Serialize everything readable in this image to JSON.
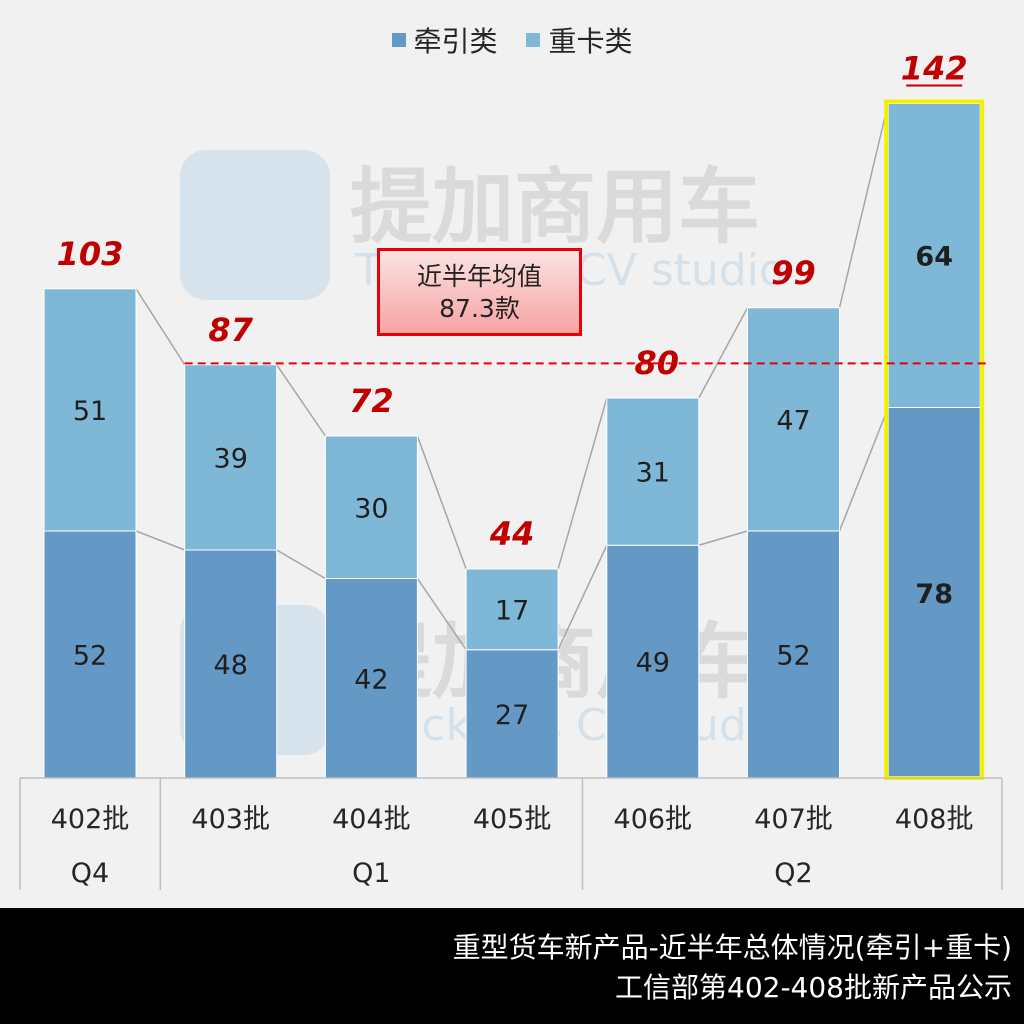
{
  "chart_data": {
    "type": "bar",
    "stacked": true,
    "categories": [
      "402批",
      "403批",
      "404批",
      "405批",
      "406批",
      "407批",
      "408批"
    ],
    "quarter_groups": [
      {
        "label": "Q4",
        "categories": [
          "402批"
        ]
      },
      {
        "label": "Q1",
        "categories": [
          "403批",
          "404批",
          "405批"
        ]
      },
      {
        "label": "Q2",
        "categories": [
          "406批",
          "407批",
          "408批"
        ]
      }
    ],
    "series": [
      {
        "name": "牵引类",
        "values": [
          52,
          48,
          42,
          27,
          49,
          52,
          78
        ],
        "color": "#6399c4"
      },
      {
        "name": "重卡类",
        "values": [
          51,
          39,
          30,
          17,
          31,
          47,
          64
        ],
        "color": "#7fb8d6"
      }
    ],
    "totals": [
      103,
      87,
      72,
      44,
      80,
      99,
      142
    ],
    "average": {
      "value": 87.3,
      "line1": "近半年均值",
      "line2": "87.3款",
      "color": "#e8000b"
    },
    "highlight_category": "408批",
    "highlight_color": "#f2f200",
    "total_label_color": "#c00000",
    "ylim": [
      0,
      145
    ],
    "legend_position": "top-center",
    "grid": false
  },
  "watermark": {
    "text_cn": "提加商用车",
    "text_en": "Truckplus CV studio"
  },
  "footer": {
    "line1": "重型货车新产品-近半年总体情况(牵引+重卡)",
    "line2": "工信部第402-408批新产品公示"
  }
}
